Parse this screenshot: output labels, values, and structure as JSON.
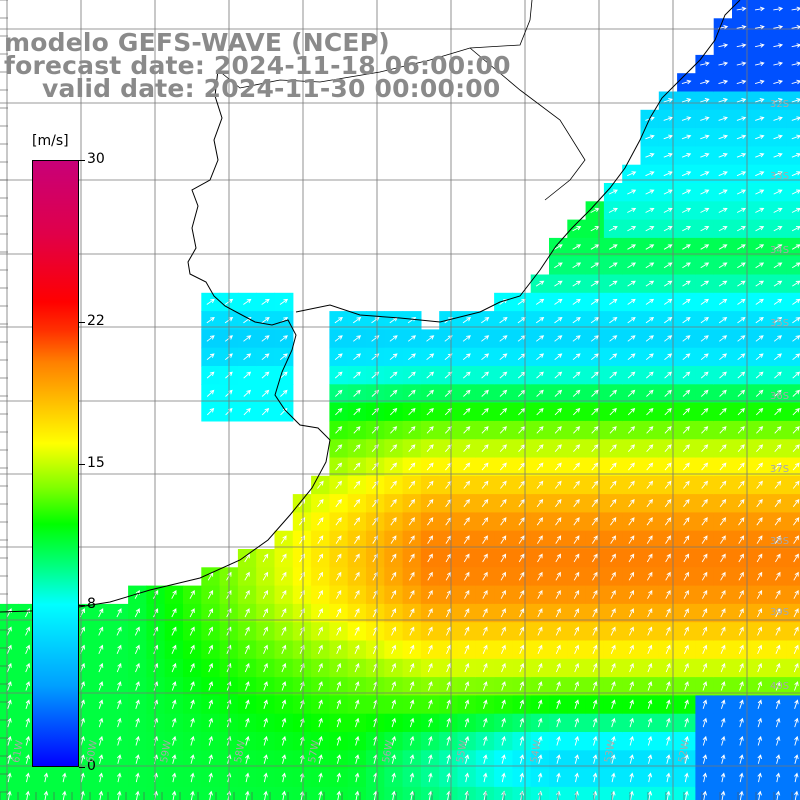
{
  "title": {
    "model": "modelo GEFS-WAVE (NCEP)",
    "forecast": "forecast date: 2024-11-18 06:00:00",
    "valid": "valid date: 2024-11-30 00:00:00"
  },
  "colorbar": {
    "units": "[m/s]",
    "ticks": [
      {
        "value": 0,
        "label": "0"
      },
      {
        "value": 8,
        "label": "8"
      },
      {
        "value": 15,
        "label": "15"
      },
      {
        "value": 22,
        "label": "22"
      },
      {
        "value": 30,
        "label": "30"
      }
    ],
    "range": [
      0,
      30
    ]
  },
  "lat_labels": [
    "32S",
    "33S",
    "34S",
    "35S",
    "36S",
    "37S",
    "38S",
    "39S",
    "40S"
  ],
  "lon_labels": [
    "61W",
    "60W",
    "59W",
    "58W",
    "57W",
    "56W",
    "55W",
    "54W",
    "53W",
    "52W"
  ],
  "map_extent": {
    "lon": [
      -62,
      -51
    ],
    "lat": [
      -41,
      -30
    ]
  },
  "field": "wind speed (m/s) with direction arrows"
}
